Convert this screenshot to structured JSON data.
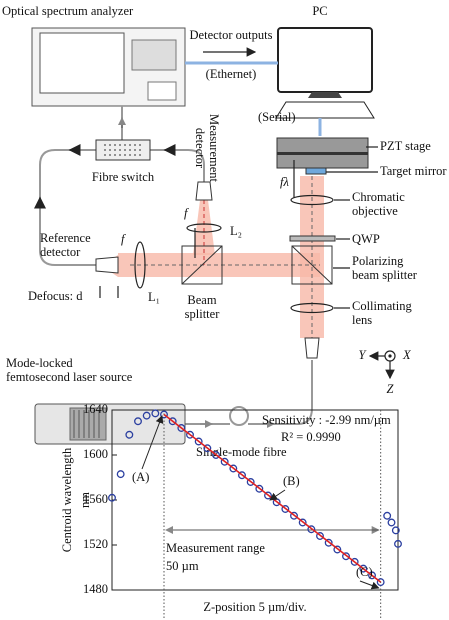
{
  "diagram": {
    "osa": "Optical spectrum analyzer",
    "pc": "PC",
    "detector_outputs": "Detector outputs",
    "ethernet": "(Ethernet)",
    "serial": "(Serial)",
    "pzt_stage": "PZT stage",
    "target_mirror": "Target mirror",
    "measurement_detector": [
      "Measurement",
      "detector"
    ],
    "fibre_switch": "Fibre switch",
    "f_measure": "f",
    "l2": "L₂",
    "f_lambda": "fλ",
    "chromatic_objective": [
      "Chromatic",
      "objective"
    ],
    "qwp": "QWP",
    "reference_detector": [
      "Reference",
      "detector"
    ],
    "f_reference": "f",
    "polarizing_beam_splitter": [
      "Polarizing",
      "beam splitter"
    ],
    "defocus": "Defocus: d",
    "l1": "L₁",
    "beam_splitter": [
      "Beam",
      "splitter"
    ],
    "collimating_lens": [
      "Collimating",
      "lens"
    ],
    "laser_source": [
      "Mode-locked",
      "femtosecond laser source"
    ],
    "single_mode_fibre": "Single-mode fibre",
    "axis_y": "Y",
    "axis_x": "X",
    "axis_z": "Z"
  },
  "chart_data": {
    "type": "scatter",
    "ylabel": [
      "Centroid wavelength",
      "nm"
    ],
    "xlabel": "Z-position 5 µm/div.",
    "xlim": [
      0,
      66
    ],
    "ylim": [
      1480,
      1640
    ],
    "yticks": [
      1480,
      1520,
      1560,
      1600,
      1640
    ],
    "series": [
      {
        "color": "#2b3fa0",
        "x": [
          0,
          2,
          4,
          6,
          8,
          10,
          12,
          14,
          16,
          18,
          20,
          22,
          24,
          26,
          28,
          30,
          32,
          34,
          36,
          38,
          40,
          42,
          44,
          46,
          48,
          50,
          52,
          54,
          56,
          58,
          60,
          62,
          63.5,
          64.5,
          65.5,
          66
        ],
        "values": [
          1562,
          1583,
          1618,
          1630,
          1635,
          1637,
          1636,
          1630,
          1624,
          1618,
          1612,
          1606,
          1600,
          1594,
          1588,
          1582,
          1576,
          1570,
          1564,
          1558,
          1552,
          1546,
          1540,
          1534,
          1528,
          1522,
          1516,
          1510,
          1505,
          1499,
          1493,
          1487,
          1546,
          1540,
          1533,
          1521
        ]
      },
      {
        "type": "line",
        "color": "#e02020",
        "x": [
          12,
          62
        ],
        "values": [
          1636,
          1487
        ]
      }
    ],
    "range_lines": [
      12,
      62
    ],
    "annotations": {
      "sensitivity": "Sensitivity : -2.99 nm/µm",
      "r_squared": "R² = 0.9990",
      "a": "(A)",
      "b": "(B)",
      "c": "(C)",
      "range": "Measurement range",
      "range_value": "50 µm"
    }
  }
}
